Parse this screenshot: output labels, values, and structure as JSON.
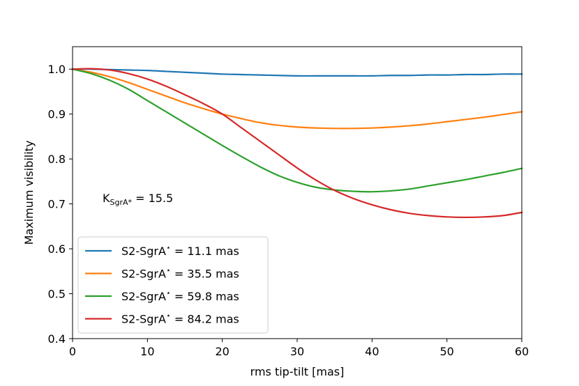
{
  "chart_data": {
    "type": "line",
    "title": "",
    "xlabel": "rms tip-tilt [mas]",
    "ylabel": "Maximum visibility",
    "xlim": [
      0,
      60
    ],
    "ylim": [
      0.4,
      1.05
    ],
    "xticks": [
      0,
      10,
      20,
      30,
      40,
      50,
      60
    ],
    "xtick_labels": [
      "0",
      "10",
      "20",
      "30",
      "40",
      "50",
      "60"
    ],
    "yticks": [
      0.4,
      0.5,
      0.6,
      0.7,
      0.8,
      0.9,
      1.0
    ],
    "ytick_labels": [
      "0.4",
      "0.5",
      "0.6",
      "0.7",
      "0.8",
      "0.9",
      "1.0"
    ],
    "grid": false,
    "legend_location": "lower-left",
    "annotation": {
      "base": "K",
      "subscript": "SgrA*",
      "value_text": " = 15.5"
    },
    "x": [
      0,
      2.5,
      5,
      7.5,
      10,
      12.5,
      15,
      17.5,
      20,
      22.5,
      25,
      27.5,
      30,
      32.5,
      35,
      37.5,
      40,
      42.5,
      45,
      47.5,
      50,
      52.5,
      55,
      57.5,
      60
    ],
    "series": [
      {
        "name_prefix": "S2-SgrA",
        "name_suffix": " = 11.1 mas",
        "color": "#1f77b4",
        "values": [
          1.0,
          1.0,
          0.999,
          0.998,
          0.997,
          0.995,
          0.993,
          0.991,
          0.989,
          0.988,
          0.987,
          0.986,
          0.985,
          0.985,
          0.985,
          0.985,
          0.985,
          0.986,
          0.986,
          0.987,
          0.987,
          0.988,
          0.988,
          0.989,
          0.989
        ]
      },
      {
        "name_prefix": "S2-SgrA",
        "name_suffix": " = 35.5 mas",
        "color": "#ff7f0e",
        "values": [
          1.0,
          0.993,
          0.983,
          0.97,
          0.955,
          0.94,
          0.925,
          0.912,
          0.9,
          0.89,
          0.881,
          0.875,
          0.871,
          0.869,
          0.868,
          0.868,
          0.869,
          0.871,
          0.874,
          0.878,
          0.883,
          0.888,
          0.893,
          0.899,
          0.905
        ]
      },
      {
        "name_prefix": "S2-SgrA",
        "name_suffix": " = 59.8 mas",
        "color": "#2ca02c",
        "values": [
          1.0,
          0.99,
          0.975,
          0.955,
          0.93,
          0.905,
          0.88,
          0.855,
          0.83,
          0.806,
          0.783,
          0.763,
          0.748,
          0.737,
          0.731,
          0.728,
          0.727,
          0.729,
          0.733,
          0.74,
          0.747,
          0.754,
          0.762,
          0.77,
          0.779
        ]
      },
      {
        "name_prefix": "S2-SgrA",
        "name_suffix": " = 84.2 mas",
        "color": "#d62728",
        "values": [
          1.0,
          1.001,
          0.998,
          0.99,
          0.978,
          0.962,
          0.943,
          0.923,
          0.9,
          0.87,
          0.84,
          0.81,
          0.78,
          0.753,
          0.73,
          0.712,
          0.698,
          0.687,
          0.679,
          0.674,
          0.671,
          0.67,
          0.671,
          0.674,
          0.681
        ]
      }
    ]
  }
}
